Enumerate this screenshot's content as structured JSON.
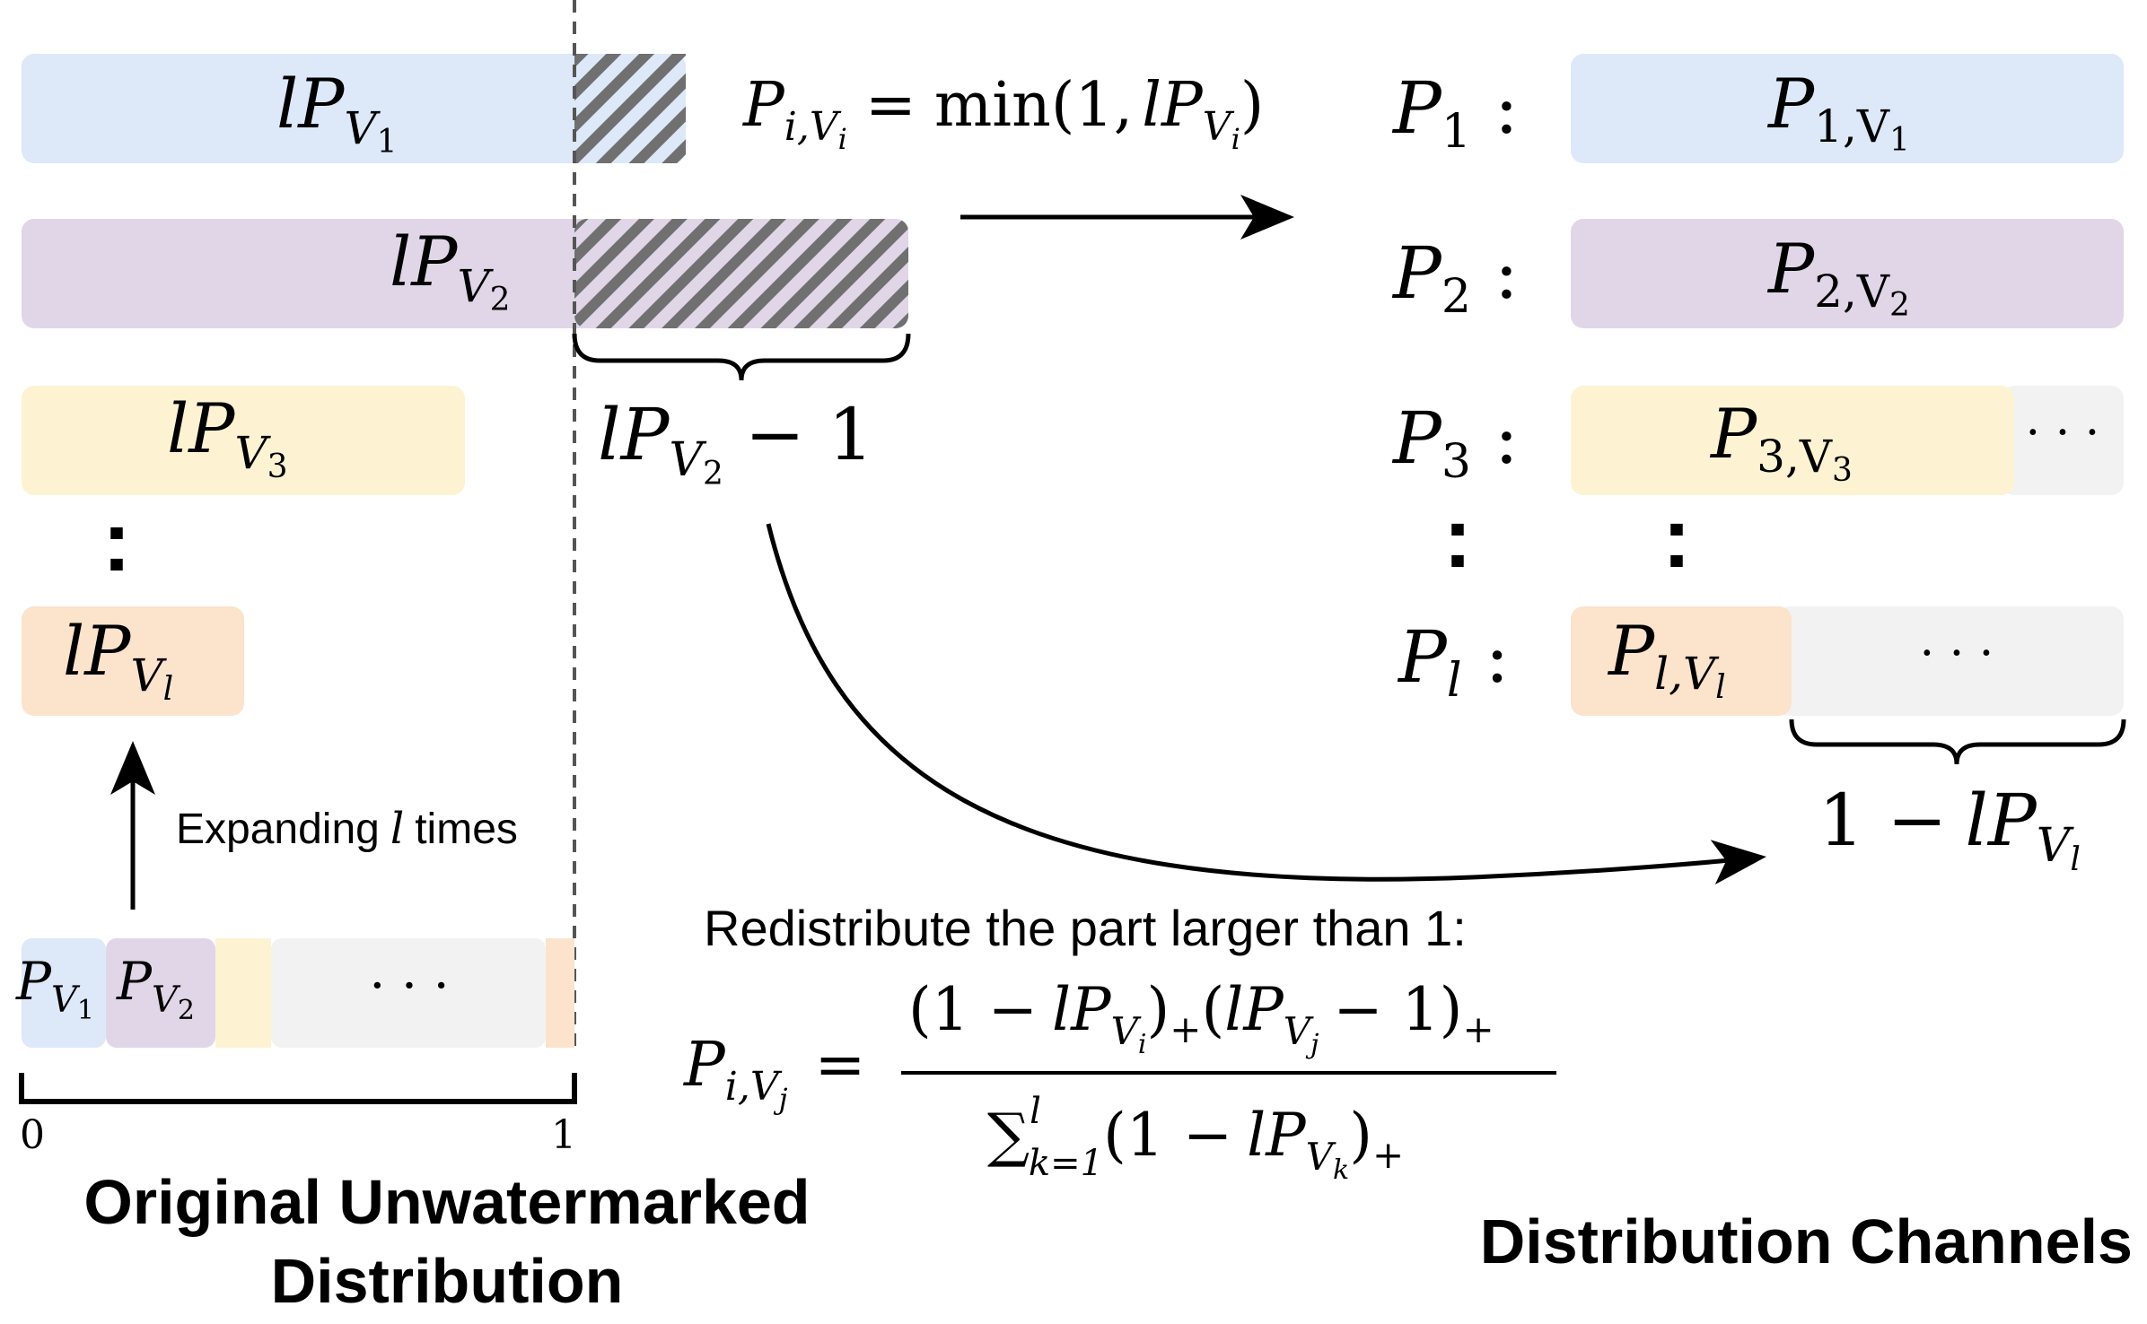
{
  "colors": {
    "v1": "#dde8f8",
    "v2": "#e1d6e8",
    "v3": "#fdf3d3",
    "vl": "#fbe3cc",
    "rest": "#f2f2f2",
    "hatch": "#707070",
    "line": "#000000"
  },
  "left_bars": {
    "v1": {
      "base": "lP",
      "sub": "V",
      "subsub": "1"
    },
    "v2": {
      "base": "lP",
      "sub": "V",
      "subsub": "2"
    },
    "v3": {
      "base": "lP",
      "sub": "V",
      "subsub": "3"
    },
    "vl": {
      "base": "lP",
      "sub": "V",
      "subsub": "l"
    },
    "vdots": ":"
  },
  "formula_top": {
    "lhs": "P",
    "lhs_sub": "i,V",
    "lhs_subsub": "i",
    "eq": "=",
    "func": "min(1,",
    "arg": "lP",
    "arg_sub": "V",
    "arg_subsub": "i",
    "close": ")"
  },
  "excess_label": {
    "base": "lP",
    "sub": "V",
    "subsub": "2",
    "tail": "− 1"
  },
  "expand_label": {
    "prefix": "Expanding",
    "var": "l",
    "suffix": "times"
  },
  "original": {
    "p1": {
      "base": "P",
      "sub": "V",
      "subsub": "1"
    },
    "p2": {
      "base": "P",
      "sub": "V",
      "subsub": "2"
    },
    "ellipsis": "· · ·",
    "axis_start": "0",
    "axis_end": "1",
    "title_line1": "Original Unwatermarked",
    "title_line2": "Distribution"
  },
  "channels": {
    "rows": [
      {
        "label": "P",
        "label_sub": "1",
        "colon": ":",
        "cell": "P",
        "cell_sub": "1,V",
        "cell_subsub": "1"
      },
      {
        "label": "P",
        "label_sub": "2",
        "colon": ":",
        "cell": "P",
        "cell_sub": "2,V",
        "cell_subsub": "2"
      },
      {
        "label": "P",
        "label_sub": "3",
        "colon": ":",
        "cell": "P",
        "cell_sub": "3,V",
        "cell_subsub": "3",
        "extra": "· · ·"
      },
      {
        "label": "P",
        "label_sub": "l",
        "colon": ":",
        "cell": "P",
        "cell_sub": "l,V",
        "cell_subsub": "l",
        "extra": "· · ·"
      }
    ],
    "vdots": ":",
    "remainder": {
      "lead": "1 −",
      "base": "lP",
      "sub": "V",
      "subsub": "l"
    },
    "title": "Distribution Channels"
  },
  "redistribute": {
    "caption": "Redistribute the part larger than 1:",
    "lhs": "P",
    "lhs_sub": "i,V",
    "lhs_subsub": "j",
    "eq": "=",
    "num_open": "(1 −",
    "num_a": "lP",
    "num_a_sub": "V",
    "num_a_subsub": "i",
    "num_mid": ")",
    "plus": "+",
    "num_b_open": "(",
    "num_b": "lP",
    "num_b_sub": "V",
    "num_b_subsub": "j",
    "num_b_tail": "− 1)",
    "den_sum": "∑",
    "den_sup": "l",
    "den_sub": "k=1",
    "den_open": "(1 −",
    "den_b": "lP",
    "den_b_sub": "V",
    "den_b_subsub": "k",
    "den_close": ")"
  }
}
